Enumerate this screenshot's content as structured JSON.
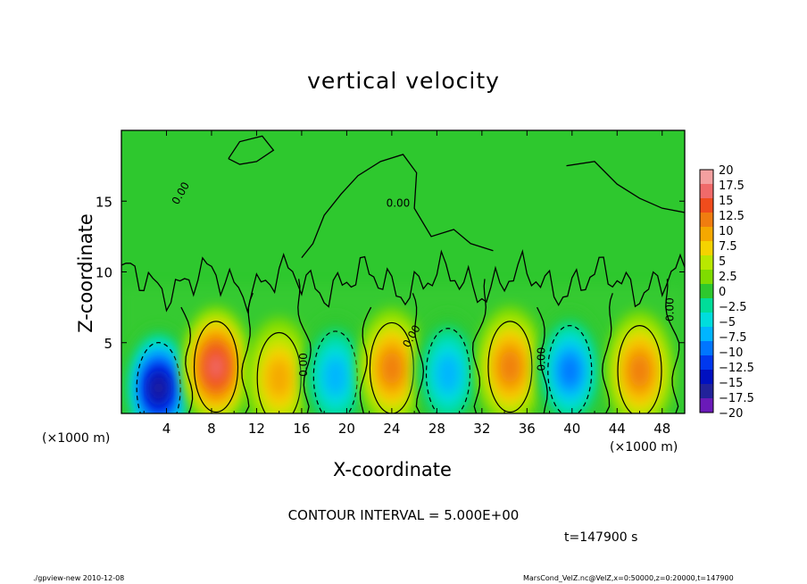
{
  "chart_data": {
    "type": "heatmap",
    "title": "vertical velocity",
    "xlabel": "X-coordinate",
    "ylabel": "Z-coordinate",
    "x_unit_label": "(×1000 m)",
    "xlim": [
      0,
      50
    ],
    "ylim": [
      0,
      20
    ],
    "x_ticks": [
      4,
      8,
      12,
      16,
      20,
      24,
      28,
      32,
      36,
      40,
      44,
      48
    ],
    "y_ticks": [
      5,
      10,
      15
    ],
    "contour_labels": [
      "0.00",
      "0.00",
      "0.00",
      "0.00",
      "0.00",
      "0.00"
    ],
    "colorbar": {
      "levels": [
        20,
        17.5,
        15,
        12.5,
        10,
        7.5,
        5,
        2.5,
        0,
        -2.5,
        -5,
        -7.5,
        -10,
        -12.5,
        -15,
        -17.5,
        -20
      ],
      "colors": [
        "#f4a0a0",
        "#f06a6a",
        "#f04c1c",
        "#f07d10",
        "#f5a800",
        "#f5d300",
        "#b9e800",
        "#7fdc00",
        "#2ec82e",
        "#00dd99",
        "#00dddd",
        "#00b5ff",
        "#0076ff",
        "#0038ee",
        "#0010c0",
        "#22229a",
        "#6a1ab8"
      ]
    },
    "cells": [
      {
        "x": 3.3,
        "z": 1.8,
        "w": -17
      },
      {
        "x": 8.4,
        "z": 3.3,
        "w": 14
      },
      {
        "x": 14.0,
        "z": 2.5,
        "w": 7
      },
      {
        "x": 19.0,
        "z": 2.6,
        "w": -6
      },
      {
        "x": 24.0,
        "z": 3.2,
        "w": 8
      },
      {
        "x": 29.0,
        "z": 2.8,
        "w": -7
      },
      {
        "x": 34.5,
        "z": 3.3,
        "w": 9
      },
      {
        "x": 39.8,
        "z": 3.0,
        "w": -10
      },
      {
        "x": 46.0,
        "z": 3.0,
        "w": 8
      }
    ],
    "contour_interval": "CONTOUR INTERVAL = 5.000E+00",
    "time": "t=147900 s"
  },
  "footer": {
    "left": "./gpview-new  2010-12-08",
    "right": "MarsCond_VelZ.nc@VelZ,x=0:50000,z=0:20000,t=147900"
  }
}
